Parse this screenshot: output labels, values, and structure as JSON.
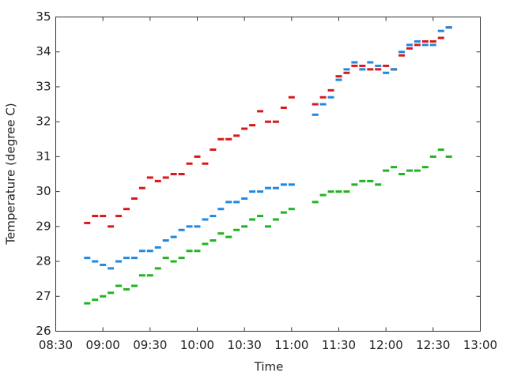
{
  "chart_data": {
    "type": "scatter",
    "xlabel": "Time",
    "ylabel": "Temperature (degree C)",
    "x": [
      530,
      535,
      540,
      545,
      550,
      555,
      560,
      565,
      570,
      575,
      580,
      585,
      590,
      595,
      600,
      605,
      610,
      615,
      620,
      625,
      630,
      635,
      640,
      645,
      650,
      655,
      660,
      675,
      680,
      685,
      690,
      695,
      700,
      705,
      710,
      715,
      720,
      725,
      730,
      735,
      740,
      745,
      750,
      755,
      760
    ],
    "series": [
      {
        "color": "#d61a1a",
        "values": [
          29.1,
          29.3,
          29.3,
          29.0,
          29.3,
          29.5,
          29.8,
          30.1,
          30.4,
          30.3,
          30.4,
          30.5,
          30.5,
          30.8,
          31.0,
          30.8,
          31.2,
          31.5,
          31.5,
          31.6,
          31.8,
          31.9,
          32.3,
          32.0,
          32.0,
          32.4,
          32.7,
          32.5,
          32.7,
          32.9,
          33.3,
          33.4,
          33.6,
          33.6,
          33.5,
          33.5,
          33.6,
          33.5,
          33.9,
          34.1,
          34.2,
          34.3,
          34.3,
          34.4,
          34.7
        ]
      },
      {
        "color": "#1f88e0",
        "values": [
          28.1,
          28.0,
          27.9,
          27.8,
          28.0,
          28.1,
          28.1,
          28.3,
          28.3,
          28.4,
          28.6,
          28.7,
          28.9,
          29.0,
          29.0,
          29.2,
          29.3,
          29.5,
          29.7,
          29.7,
          29.8,
          30.0,
          30.0,
          30.1,
          30.1,
          30.2,
          30.2,
          32.2,
          32.5,
          32.7,
          33.2,
          33.5,
          33.7,
          33.5,
          33.7,
          33.6,
          33.4,
          33.5,
          34.0,
          34.2,
          34.3,
          34.2,
          34.2,
          34.6,
          34.7
        ]
      },
      {
        "color": "#22b322",
        "values": [
          26.8,
          26.9,
          27.0,
          27.1,
          27.3,
          27.2,
          27.3,
          27.6,
          27.6,
          27.8,
          28.1,
          28.0,
          28.1,
          28.3,
          28.3,
          28.5,
          28.6,
          28.8,
          28.7,
          28.9,
          29.0,
          29.2,
          29.3,
          29.0,
          29.2,
          29.4,
          29.5,
          29.7,
          29.9,
          30.0,
          30.0,
          30.0,
          30.2,
          30.3,
          30.3,
          30.2,
          30.6,
          30.7,
          30.5,
          30.6,
          30.6,
          30.7,
          31.0,
          31.2,
          31.0
        ]
      }
    ],
    "xlim": [
      510,
      780
    ],
    "xticks": [
      {
        "value": 510,
        "label": "08:30"
      },
      {
        "value": 540,
        "label": "09:00"
      },
      {
        "value": 570,
        "label": "09:30"
      },
      {
        "value": 600,
        "label": "10:00"
      },
      {
        "value": 630,
        "label": "10:30"
      },
      {
        "value": 660,
        "label": "11:00"
      },
      {
        "value": 690,
        "label": "11:30"
      },
      {
        "value": 720,
        "label": "12:00"
      },
      {
        "value": 750,
        "label": "12:30"
      },
      {
        "value": 780,
        "label": "13:00"
      }
    ],
    "ylim": [
      26,
      35
    ],
    "yticks": [
      26,
      27,
      28,
      29,
      30,
      31,
      32,
      33,
      34,
      35
    ],
    "grid": false
  }
}
